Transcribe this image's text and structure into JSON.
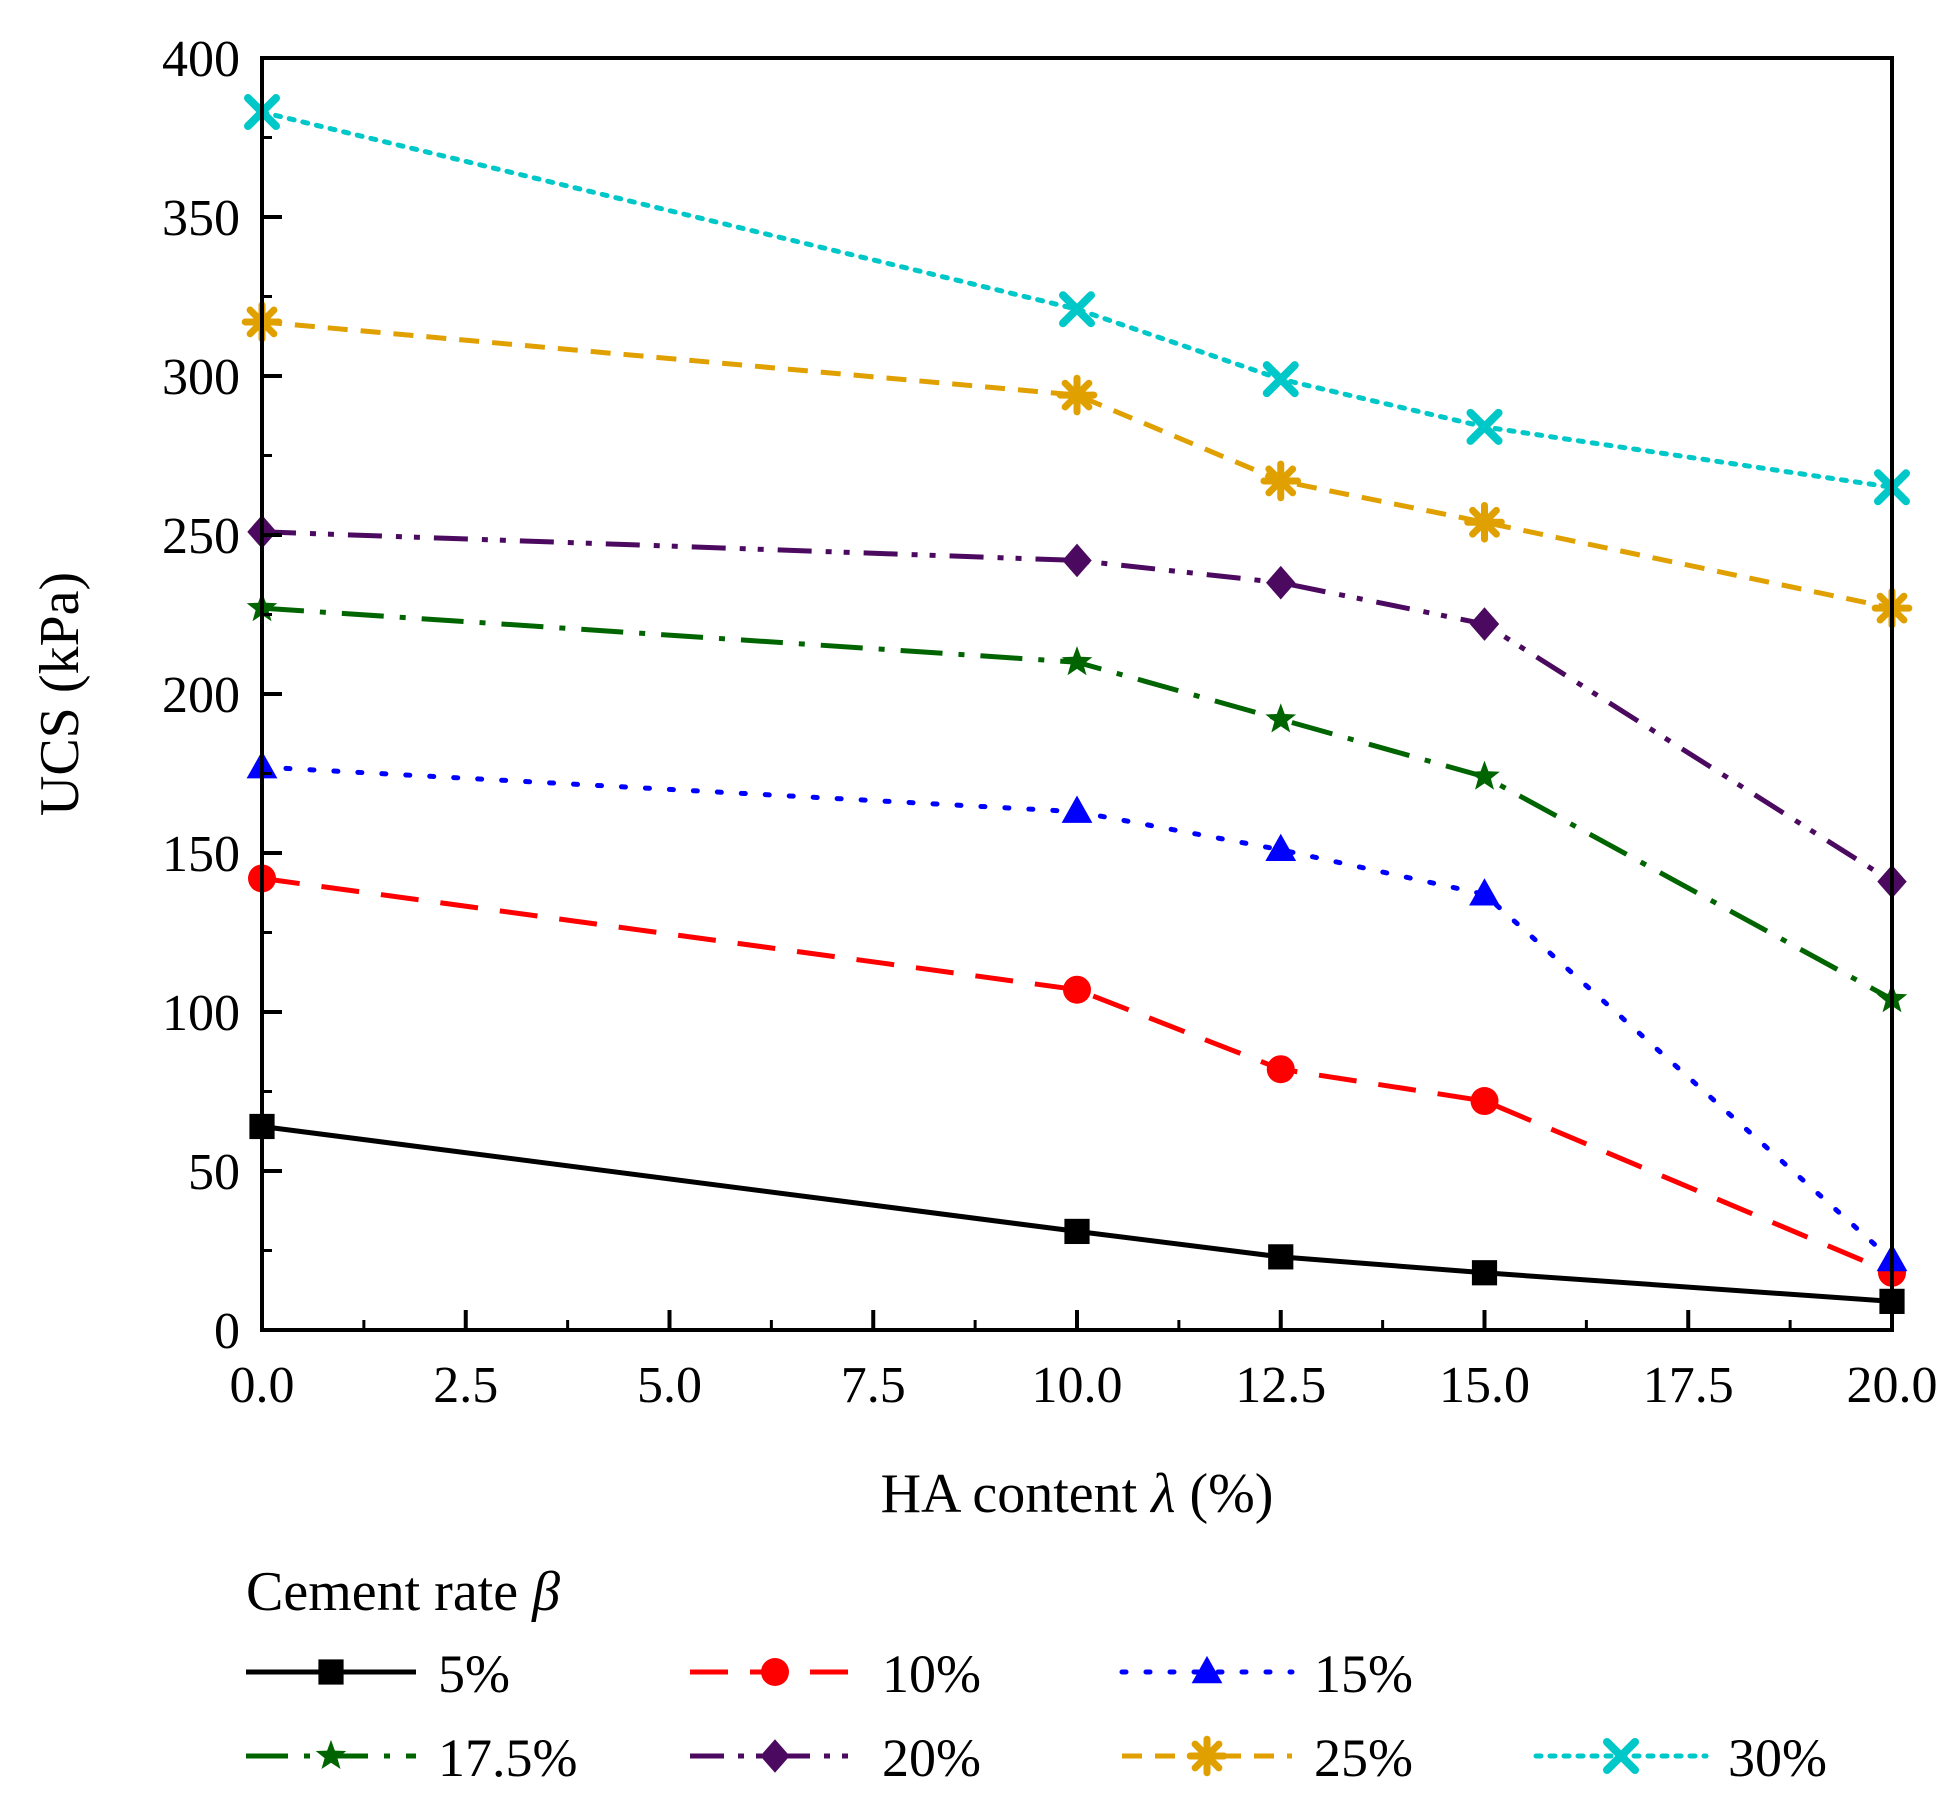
{
  "chart_data": {
    "type": "line",
    "title": "",
    "xlabel": "HA content λ (%)",
    "xlabel_parts": {
      "prefix": "HA content ",
      "symbol": "λ",
      "suffix": " (%)"
    },
    "ylabel": "UCS (kPa)",
    "xlim": [
      0,
      20
    ],
    "ylim": [
      0,
      400
    ],
    "x_ticks": [
      0,
      2.5,
      5,
      7.5,
      10,
      12.5,
      15,
      17.5,
      20
    ],
    "x_tick_labels": [
      "0.0",
      "2.5",
      "5.0",
      "7.5",
      "10.0",
      "12.5",
      "15.0",
      "17.5",
      "20.0"
    ],
    "y_ticks": [
      0,
      50,
      100,
      150,
      200,
      250,
      300,
      350,
      400
    ],
    "y_tick_labels": [
      "0",
      "50",
      "100",
      "150",
      "200",
      "250",
      "300",
      "350",
      "400"
    ],
    "x": [
      0,
      10,
      12.5,
      15,
      20
    ],
    "grid": false,
    "legend_title": "Cement rate β",
    "legend_title_parts": {
      "prefix": "Cement rate ",
      "symbol": "β"
    },
    "legend_position": "bottom",
    "series": [
      {
        "name": "5%",
        "values": [
          64,
          31,
          23,
          18,
          9
        ],
        "color": "#000000",
        "dash": "solid",
        "marker": "square"
      },
      {
        "name": "10%",
        "values": [
          142,
          107,
          82,
          72,
          18
        ],
        "color": "#ff0000",
        "dash": "dash",
        "marker": "circle"
      },
      {
        "name": "15%",
        "values": [
          177,
          163,
          151,
          137,
          22
        ],
        "color": "#0000ff",
        "dash": "dot",
        "marker": "triangle"
      },
      {
        "name": "17.5%",
        "values": [
          227,
          210,
          192,
          174,
          104
        ],
        "color": "#006400",
        "dash": "dashdot",
        "marker": "star"
      },
      {
        "name": "20%",
        "values": [
          251,
          242,
          235,
          222,
          141
        ],
        "color": "#4b0a5f",
        "dash": "dashdotdot",
        "marker": "diamond"
      },
      {
        "name": "25%",
        "values": [
          317,
          294,
          267,
          254,
          227
        ],
        "color": "#e0a000",
        "dash": "shortdash",
        "marker": "asterisk"
      },
      {
        "name": "30%",
        "values": [
          383,
          321,
          299,
          284,
          265
        ],
        "color": "#00c8c8",
        "dash": "shortdot",
        "marker": "x"
      }
    ]
  }
}
